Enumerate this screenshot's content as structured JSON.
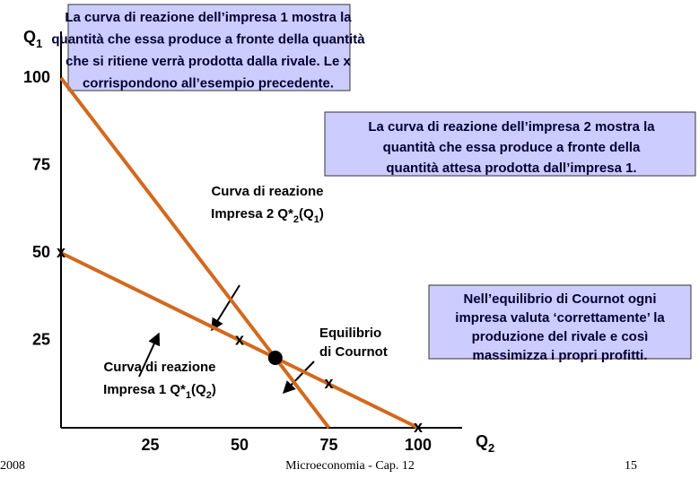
{
  "chart_data": {
    "type": "line",
    "x": [
      0,
      75,
      100
    ],
    "series": [
      {
        "color": "#d2691e",
        "values": [
          50,
          12.5,
          0
        ]
      },
      {
        "color": "#d2691e",
        "values": [
          100,
          0,
          null
        ]
      }
    ],
    "xlim": [
      0,
      100
    ],
    "ylim": [
      0,
      100
    ],
    "xticks": [
      25,
      50,
      75,
      100
    ],
    "yticks": [
      25,
      50,
      75,
      100
    ],
    "x_label": [
      "Q",
      "2"
    ],
    "y_label": [
      "Q",
      "1"
    ],
    "x_points": {
      "x": [
        0,
        50,
        75,
        100
      ],
      "y": [
        50,
        25,
        12.5,
        0
      ],
      "label": "x"
    },
    "equilibrium": {
      "x": 60,
      "y": 20
    },
    "curve_label_1": {
      "line1": "Curva di reazione",
      "line2": [
        "Impresa 1 Q*",
        "1",
        "(Q",
        "2",
        ")"
      ]
    },
    "curve_label_2": {
      "line1": "Curva di reazione",
      "line2": [
        "Impresa 2 Q*",
        "2",
        "(Q",
        "1",
        ")"
      ]
    },
    "equilibrium_label": [
      "Equilibrio",
      "di Cournot"
    ],
    "boxes": [
      [
        "La curva di reazione dell’impresa 1 mostra la",
        "quantità che essa produce a fronte della quantità",
        "che si ritiene verrà prodotta dalla rivale.  Le  x",
        "corrispondono all’esempio precedente."
      ],
      [
        "La curva di reazione dell’impresa 2 mostra la",
        "quantità che essa produce a fronte della",
        "quantità attesa prodotta dall’impresa 1."
      ],
      [
        "Nell’equilibrio di Cournot ogni",
        "impresa valuta ‘correttamente’ la",
        "produzione del rivale e così",
        "massimizza i propri profitti."
      ]
    ]
  },
  "footer": {
    "left": "2008",
    "center": "Microeconomia - Cap. 12",
    "right": "15"
  }
}
